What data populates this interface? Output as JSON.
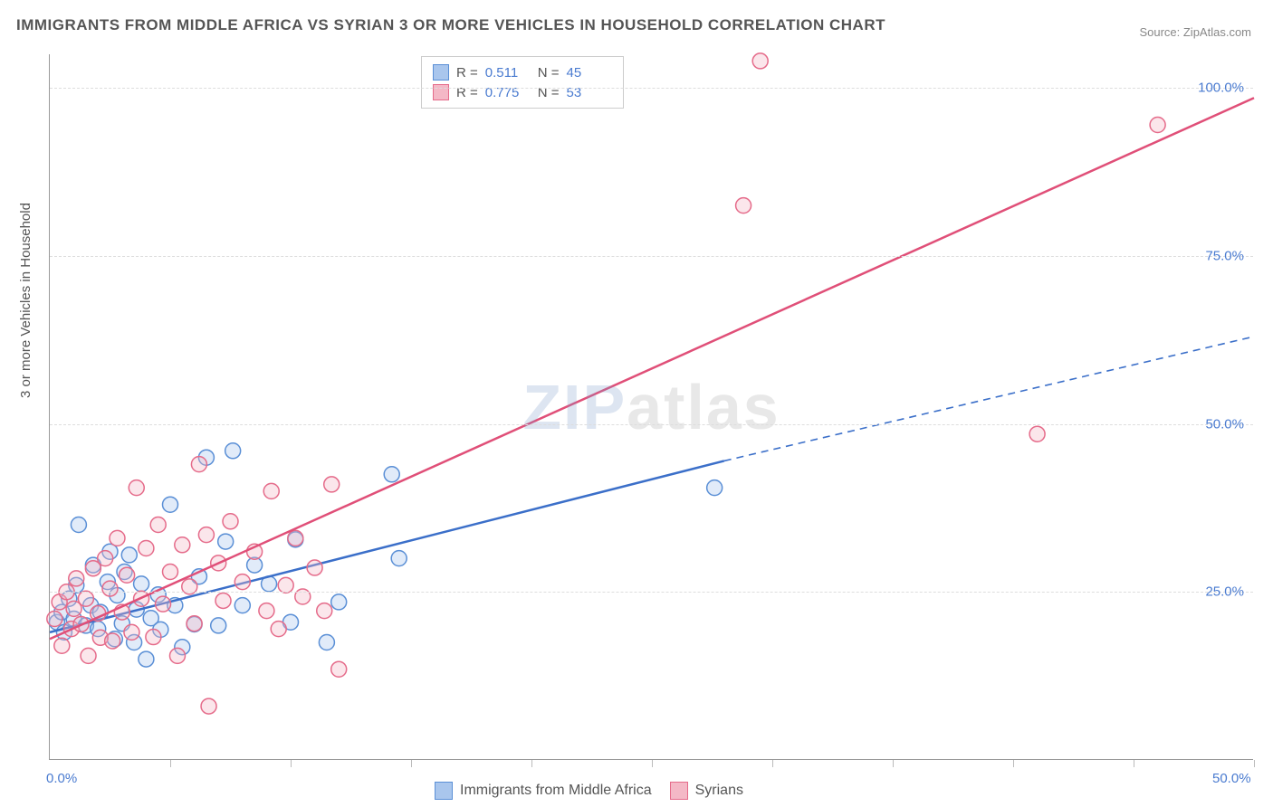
{
  "title": "IMMIGRANTS FROM MIDDLE AFRICA VS SYRIAN 3 OR MORE VEHICLES IN HOUSEHOLD CORRELATION CHART",
  "source": "Source: ZipAtlas.com",
  "y_axis_label": "3 or more Vehicles in Household",
  "watermark": {
    "part1": "ZIP",
    "part2": "atlas"
  },
  "chart": {
    "type": "scatter",
    "background_color": "#ffffff",
    "grid_color": "#dddddd",
    "axis_color": "#999999",
    "text_color": "#555555",
    "value_color": "#4a7bd0",
    "xlim": [
      0,
      50
    ],
    "ylim": [
      0,
      105
    ],
    "x_ticks": [
      0,
      5,
      10,
      15,
      20,
      25,
      30,
      35,
      40,
      45,
      50
    ],
    "x_tick_labels": {
      "0": "0.0%",
      "50": "50.0%"
    },
    "y_ticks": [
      25,
      50,
      75,
      100
    ],
    "y_tick_labels": {
      "25": "25.0%",
      "50": "50.0%",
      "75": "75.0%",
      "100": "100.0%"
    },
    "marker_radius": 8.5,
    "marker_stroke_width": 1.5,
    "marker_fill_opacity": 0.35,
    "trend_line_width": 2.5,
    "series": [
      {
        "name": "Immigrants from Middle Africa",
        "color_fill": "#a9c6ed",
        "color_stroke": "#5a8fd6",
        "line_color": "#3b6fc9",
        "R": "0.511",
        "N": "45",
        "trend_line": {
          "x1": 0,
          "y1": 19,
          "x2": 28,
          "y2": 44.5,
          "dashed_extend_x2": 50,
          "dashed_extend_y2": 63
        },
        "points": [
          [
            0.3,
            20.5
          ],
          [
            0.5,
            22
          ],
          [
            0.6,
            19
          ],
          [
            0.8,
            24
          ],
          [
            1,
            21
          ],
          [
            1.1,
            26
          ],
          [
            1.2,
            35
          ],
          [
            1.5,
            20
          ],
          [
            1.7,
            23
          ],
          [
            1.8,
            29
          ],
          [
            2,
            19.5
          ],
          [
            2.1,
            22
          ],
          [
            2.4,
            26.5
          ],
          [
            2.5,
            31
          ],
          [
            2.7,
            18
          ],
          [
            2.8,
            24.5
          ],
          [
            3,
            20.3
          ],
          [
            3.1,
            28
          ],
          [
            3.3,
            30.5
          ],
          [
            3.5,
            17.5
          ],
          [
            3.6,
            22.4
          ],
          [
            3.8,
            26.2
          ],
          [
            4,
            15
          ],
          [
            4.2,
            21.1
          ],
          [
            4.5,
            24.6
          ],
          [
            4.6,
            19.4
          ],
          [
            5,
            38
          ],
          [
            5.2,
            23
          ],
          [
            5.5,
            16.8
          ],
          [
            6,
            20.2
          ],
          [
            6.2,
            27.3
          ],
          [
            6.5,
            45
          ],
          [
            7,
            20
          ],
          [
            7.3,
            32.5
          ],
          [
            8,
            23
          ],
          [
            8.5,
            29
          ],
          [
            9.1,
            26.2
          ],
          [
            10,
            20.5
          ],
          [
            10.2,
            32.8
          ],
          [
            11.5,
            17.5
          ],
          [
            12,
            23.5
          ],
          [
            14.2,
            42.5
          ],
          [
            14.5,
            30
          ],
          [
            27.6,
            40.5
          ],
          [
            7.6,
            46
          ]
        ]
      },
      {
        "name": "Syrians",
        "color_fill": "#f4b8c6",
        "color_stroke": "#e56b8a",
        "line_color": "#e04f78",
        "R": "0.775",
        "N": "53",
        "trend_line": {
          "x1": 0,
          "y1": 18,
          "x2": 50,
          "y2": 98.5
        },
        "points": [
          [
            0.2,
            21
          ],
          [
            0.4,
            23.5
          ],
          [
            0.5,
            17
          ],
          [
            0.7,
            25
          ],
          [
            0.9,
            19.5
          ],
          [
            1,
            22.5
          ],
          [
            1.1,
            27
          ],
          [
            1.3,
            20.2
          ],
          [
            1.5,
            24
          ],
          [
            1.6,
            15.5
          ],
          [
            1.8,
            28.5
          ],
          [
            2,
            21.8
          ],
          [
            2.1,
            18.2
          ],
          [
            2.3,
            30
          ],
          [
            2.5,
            25.5
          ],
          [
            2.6,
            17.7
          ],
          [
            2.8,
            33
          ],
          [
            3,
            22
          ],
          [
            3.2,
            27.5
          ],
          [
            3.4,
            19
          ],
          [
            3.6,
            40.5
          ],
          [
            3.8,
            24
          ],
          [
            4,
            31.5
          ],
          [
            4.3,
            18.3
          ],
          [
            4.5,
            35
          ],
          [
            4.7,
            23.2
          ],
          [
            5,
            28
          ],
          [
            5.3,
            15.5
          ],
          [
            5.5,
            32
          ],
          [
            5.8,
            25.8
          ],
          [
            6,
            20.3
          ],
          [
            6.2,
            44
          ],
          [
            6.5,
            33.5
          ],
          [
            6.6,
            8
          ],
          [
            7,
            29.3
          ],
          [
            7.2,
            23.7
          ],
          [
            7.5,
            35.5
          ],
          [
            8,
            26.5
          ],
          [
            8.5,
            31
          ],
          [
            9,
            22.2
          ],
          [
            9.2,
            40
          ],
          [
            9.5,
            19.5
          ],
          [
            9.8,
            26
          ],
          [
            10.2,
            33
          ],
          [
            10.5,
            24.3
          ],
          [
            11,
            28.6
          ],
          [
            11.4,
            22.2
          ],
          [
            11.7,
            41
          ],
          [
            12,
            13.5
          ],
          [
            28.8,
            82.5
          ],
          [
            29.5,
            104
          ],
          [
            41,
            48.5
          ],
          [
            46,
            94.5
          ]
        ]
      }
    ]
  },
  "legend_top": {
    "r_label": "R  =",
    "n_label": "N  ="
  },
  "legend_bottom": [
    {
      "label": "Immigrants from Middle Africa",
      "fill": "#a9c6ed",
      "stroke": "#5a8fd6"
    },
    {
      "label": "Syrians",
      "fill": "#f4b8c6",
      "stroke": "#e56b8a"
    }
  ]
}
